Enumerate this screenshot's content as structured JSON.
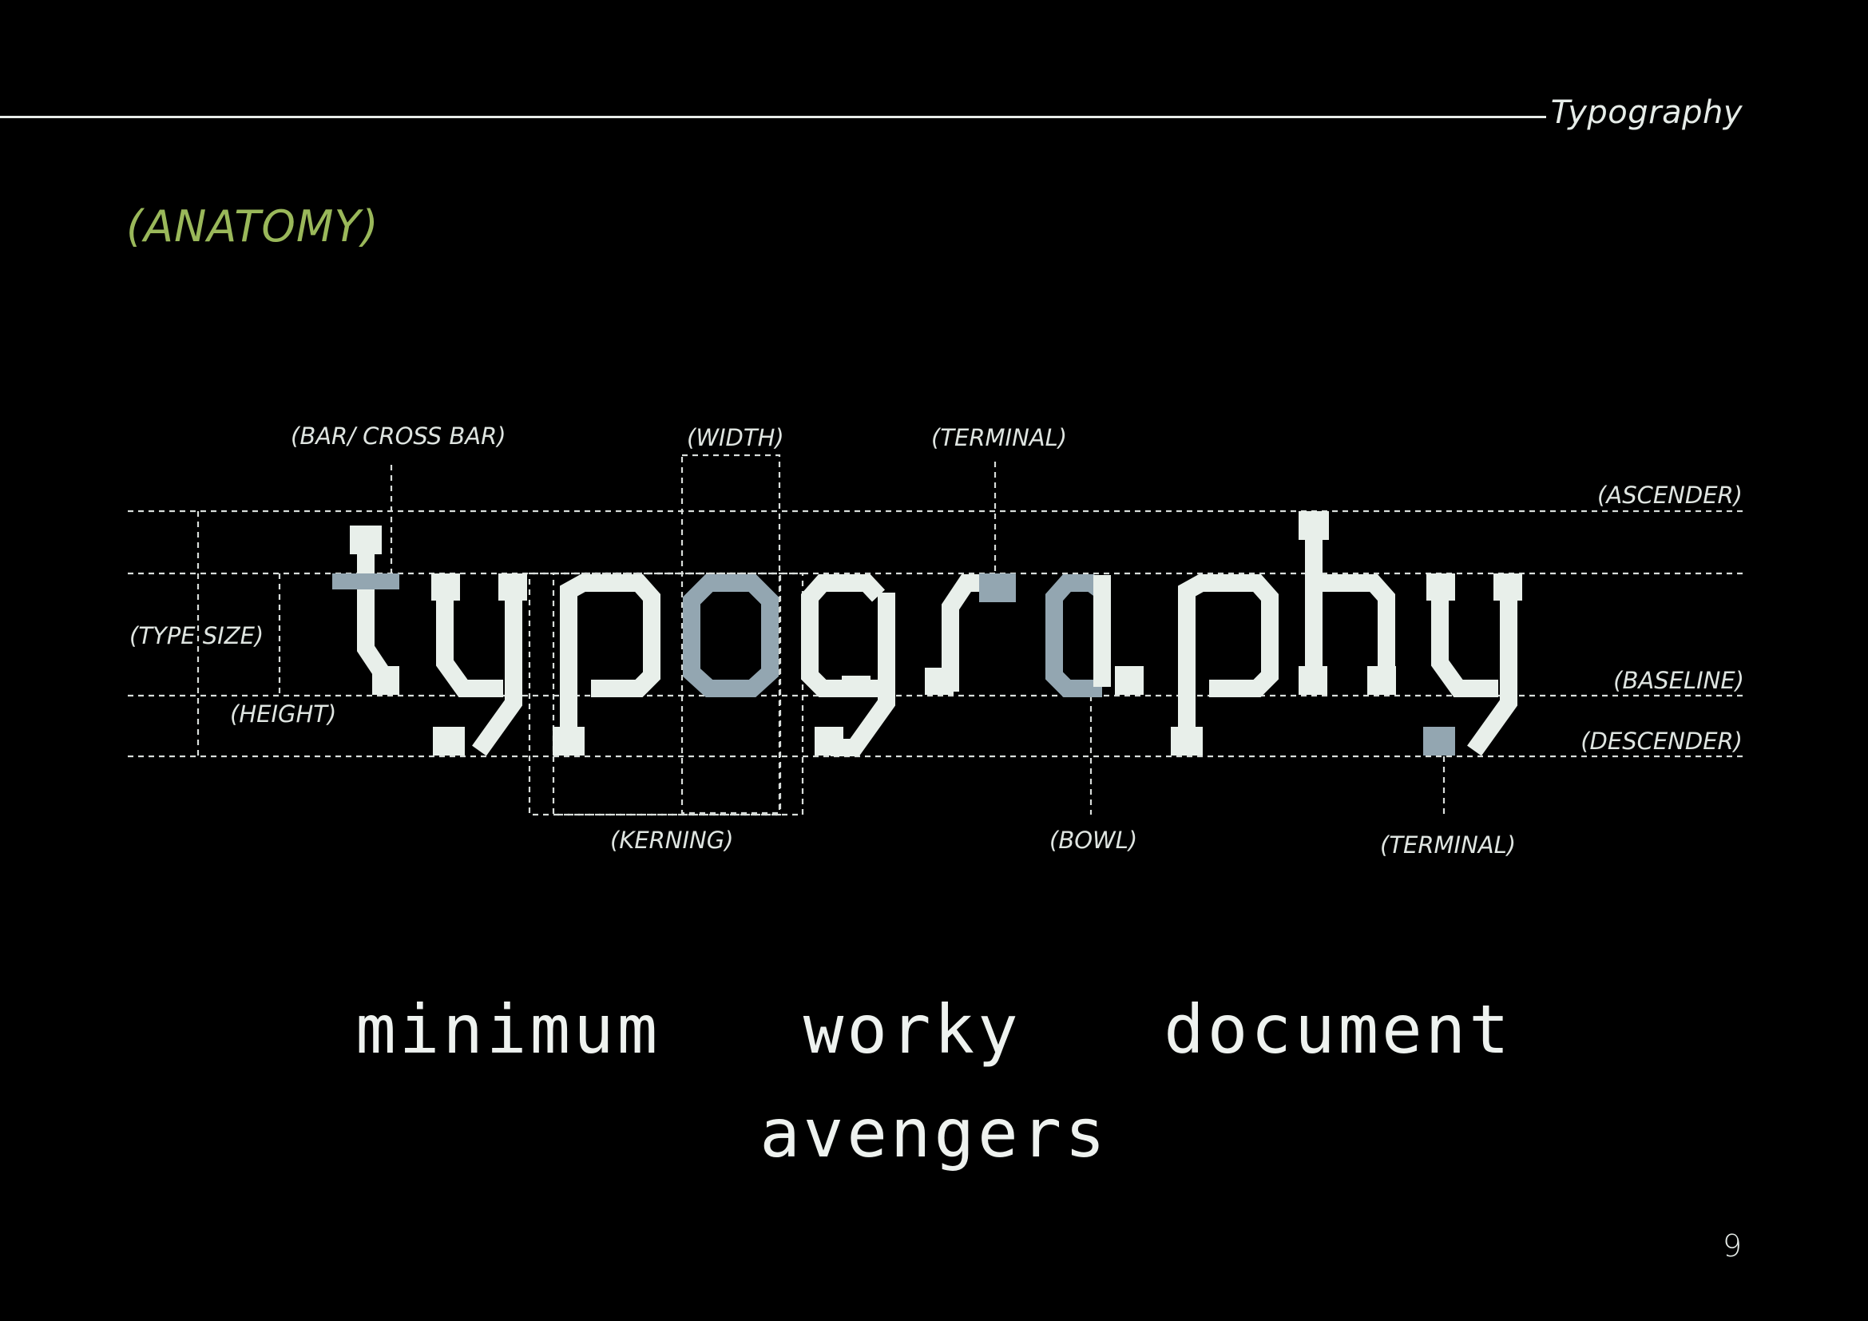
{
  "header": {
    "title": "Typography",
    "page_number": "9"
  },
  "section": {
    "title": "(ANATOMY)"
  },
  "anatomy": {
    "word": "typography",
    "labels": {
      "bar": "(BAR/ CROSS BAR)",
      "width": "(WIDTH)",
      "terminal_top": "(TERMINAL)",
      "ascender": "(ASCENDER)",
      "type_size": "(TYPE SIZE)",
      "height": "(HEIGHT)",
      "baseline": "(BASELINE)",
      "descender": "(DESCENDER)",
      "kerning": "(KERNING)",
      "bowl": "(BOWL)",
      "terminal_bottom": "(TERMINAL)"
    }
  },
  "samples": [
    "minimum",
    "worky",
    "document",
    "avengers"
  ],
  "colors": {
    "accent": "#9ab85a",
    "highlight": "#93a6b1",
    "glyph": "#e8efea",
    "background": "#000000"
  }
}
